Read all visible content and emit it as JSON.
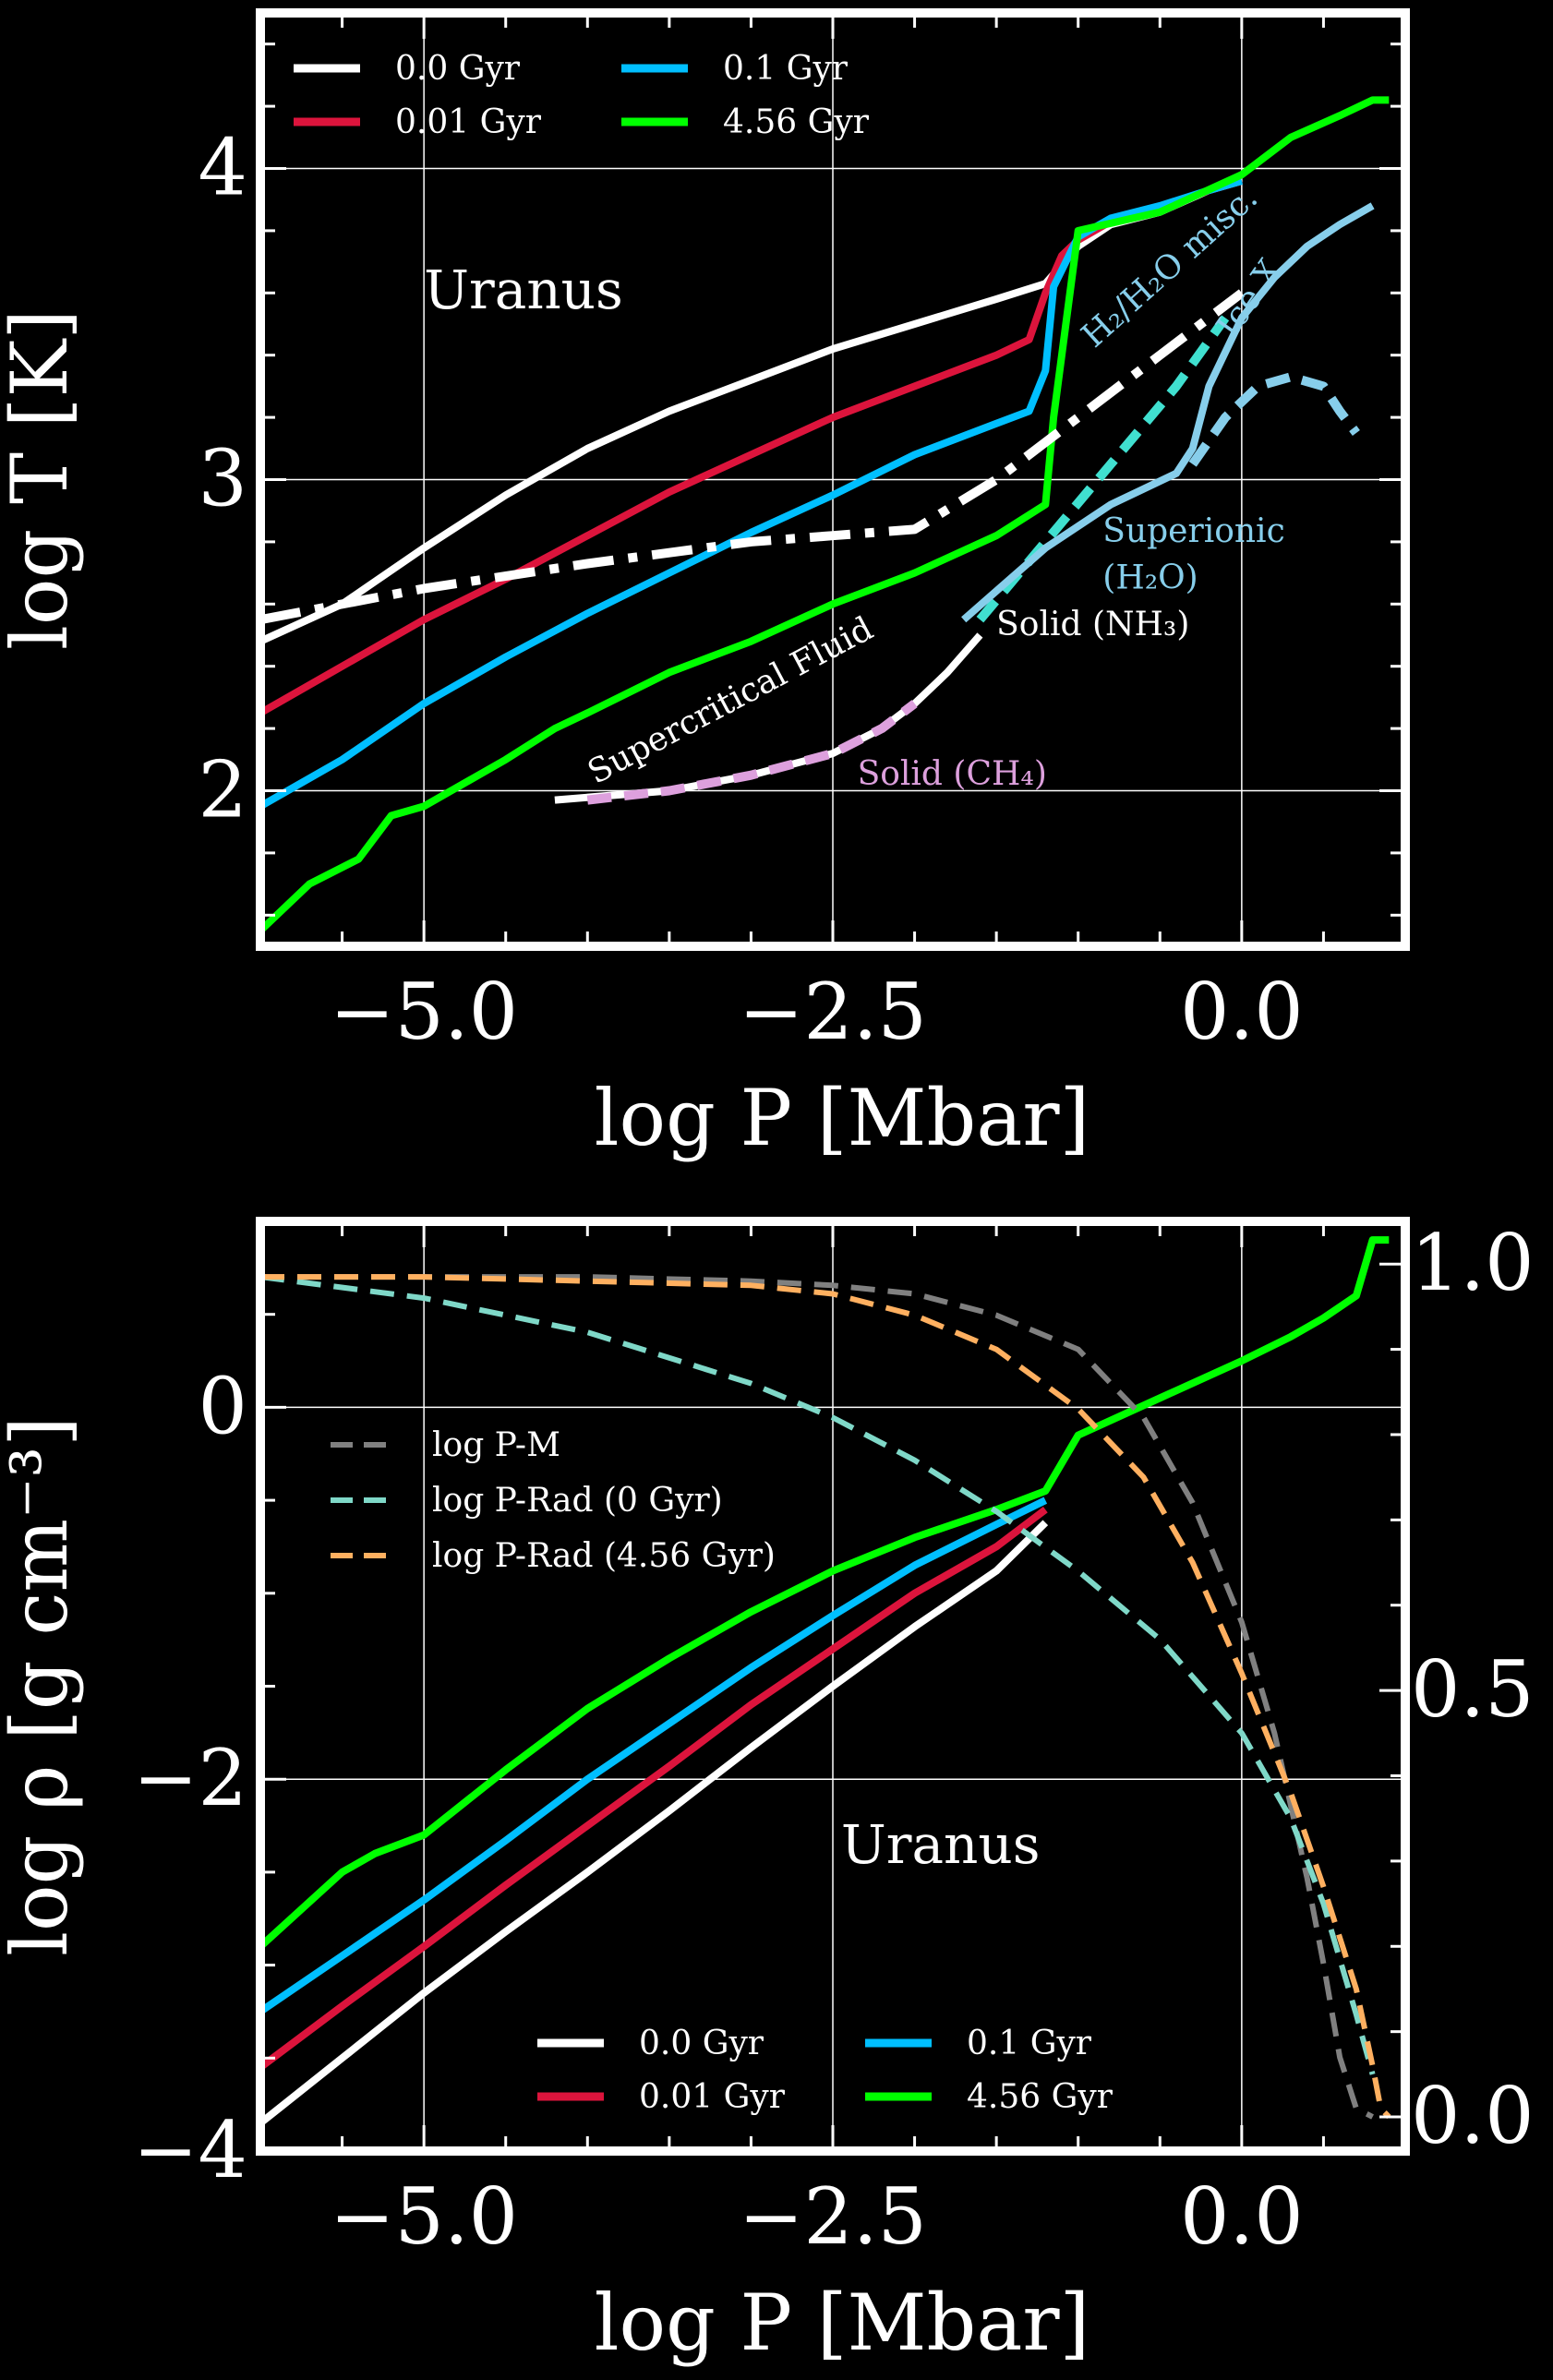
{
  "figure": {
    "background": "#000000",
    "axis_color": "#ffffff",
    "grid": true
  },
  "chart_data": [
    {
      "type": "line",
      "panel": "top",
      "xlabel": "log P [Mbar]",
      "ylabel": "log T [K]",
      "xlim": [
        -6.0,
        1.0
      ],
      "ylim": [
        1.5,
        4.5
      ],
      "xticks": [
        -5.0,
        -2.5,
        0.0
      ],
      "xtick_labels": [
        "−5.0",
        "−2.5",
        "0.0"
      ],
      "yticks": [
        2,
        3,
        4
      ],
      "ytick_labels": [
        "2",
        "3",
        "4"
      ],
      "annotations": [
        {
          "text": "Uranus",
          "x": -5.0,
          "y": 3.55,
          "color": "#ffffff"
        },
        {
          "text": "H₂/H₂O misc.",
          "x": -0.9,
          "y": 3.42,
          "color": "#87ceeb",
          "rotate": -42
        },
        {
          "text": "Ice X",
          "x": -0.05,
          "y": 3.45,
          "color": "#87ceeb",
          "rotate": -55
        },
        {
          "text": "Superionic",
          "x": -0.85,
          "y": 2.8,
          "color": "#87ceeb"
        },
        {
          "text": "(H₂O)",
          "x": -0.85,
          "y": 2.65,
          "color": "#87ceeb"
        },
        {
          "text": "Solid (NH₃)",
          "x": -1.5,
          "y": 2.5,
          "color": "#ffffff"
        },
        {
          "text": "Supercritical Fluid",
          "x": -3.95,
          "y": 2.02,
          "color": "#ffffff",
          "rotate": -28
        },
        {
          "text": "Solid (CH₄)",
          "x": -2.35,
          "y": 2.02,
          "color": "#dda0dd"
        }
      ],
      "legend": {
        "placement": "top-left",
        "entries": [
          "0.0 Gyr",
          "0.01 Gyr",
          "0.1 Gyr",
          "4.56 Gyr"
        ],
        "colors": [
          "#ffffff",
          "#dc143c",
          "#00bfff",
          "#00ff00"
        ]
      },
      "series": [
        {
          "name": "0.0 Gyr",
          "color": "#ffffff",
          "x": [
            -6.0,
            -5.5,
            -5.0,
            -4.5,
            -4.0,
            -3.5,
            -3.0,
            -2.5,
            -2.0,
            -1.5,
            -1.2,
            -1.05,
            -1.0,
            -0.8,
            -0.5,
            -0.2,
            0.0
          ],
          "y": [
            2.48,
            2.6,
            2.78,
            2.95,
            3.1,
            3.22,
            3.32,
            3.42,
            3.5,
            3.58,
            3.63,
            3.72,
            3.75,
            3.82,
            3.86,
            3.93,
            3.96
          ]
        },
        {
          "name": "0.01 Gyr",
          "color": "#dc143c",
          "x": [
            -6.0,
            -5.5,
            -5.0,
            -4.5,
            -4.0,
            -3.5,
            -3.0,
            -2.5,
            -2.0,
            -1.5,
            -1.3,
            -1.2,
            -1.1,
            -1.0,
            -0.8,
            -0.5,
            -0.2,
            0.0
          ],
          "y": [
            2.25,
            2.4,
            2.55,
            2.68,
            2.82,
            2.96,
            3.08,
            3.2,
            3.3,
            3.4,
            3.45,
            3.6,
            3.72,
            3.77,
            3.83,
            3.87,
            3.93,
            3.96
          ]
        },
        {
          "name": "0.1 Gyr",
          "color": "#00bfff",
          "x": [
            -6.0,
            -5.5,
            -5.0,
            -4.5,
            -4.0,
            -3.5,
            -3.0,
            -2.5,
            -2.0,
            -1.5,
            -1.3,
            -1.2,
            -1.15,
            -1.0,
            -0.8,
            -0.5,
            -0.2,
            0.0
          ],
          "y": [
            1.95,
            2.1,
            2.28,
            2.43,
            2.57,
            2.7,
            2.83,
            2.95,
            3.08,
            3.18,
            3.22,
            3.35,
            3.62,
            3.78,
            3.84,
            3.88,
            3.93,
            3.96
          ]
        },
        {
          "name": "4.56 Gyr",
          "color": "#00ff00",
          "x": [
            -6.0,
            -5.7,
            -5.4,
            -5.2,
            -5.0,
            -4.5,
            -4.2,
            -4.0,
            -3.5,
            -3.0,
            -2.5,
            -2.0,
            -1.5,
            -1.2,
            -1.15,
            -1.0,
            -0.5,
            0.0,
            0.3,
            0.6,
            0.8,
            0.9
          ],
          "y": [
            1.55,
            1.7,
            1.78,
            1.92,
            1.95,
            2.1,
            2.2,
            2.25,
            2.38,
            2.48,
            2.6,
            2.7,
            2.82,
            2.92,
            3.2,
            3.8,
            3.86,
            3.98,
            4.1,
            4.17,
            4.22,
            4.22
          ]
        },
        {
          "color": "#ffffff",
          "dash": "dashdot",
          "x": [
            -6.0,
            -5.0,
            -4.0,
            -3.0,
            -2.5,
            -2.0,
            -1.5,
            -1.0,
            -0.5,
            -0.2,
            0.0
          ],
          "y": [
            2.55,
            2.65,
            2.73,
            2.8,
            2.82,
            2.84,
            3.0,
            3.2,
            3.4,
            3.52,
            3.6
          ]
        },
        {
          "color": "#ffffff",
          "dash": "solid",
          "x": [
            -4.2,
            -3.5,
            -3.0,
            -2.5,
            -2.2,
            -2.0,
            -1.8,
            -1.6
          ],
          "y": [
            1.97,
            2.0,
            2.05,
            2.12,
            2.2,
            2.28,
            2.38,
            2.5
          ]
        },
        {
          "color": "#dda0dd",
          "dash": "dashed",
          "x": [
            -4.0,
            -3.5,
            -3.0,
            -2.5,
            -2.2,
            -2.0
          ],
          "y": [
            1.97,
            2.0,
            2.05,
            2.12,
            2.2,
            2.28
          ]
        },
        {
          "color": "#40e0d0",
          "dash": "dashed",
          "x": [
            -1.6,
            -1.2,
            -0.8,
            -0.4,
            -0.1
          ],
          "y": [
            2.55,
            2.8,
            3.05,
            3.3,
            3.52
          ]
        },
        {
          "color": "#87ceeb",
          "dash": "solid",
          "x": [
            -1.7,
            -1.2,
            -0.8,
            -0.6,
            -0.4,
            -0.3,
            -0.2,
            0.0,
            0.2,
            0.4,
            0.6,
            0.8
          ],
          "y": [
            2.55,
            2.78,
            2.92,
            2.97,
            3.02,
            3.1,
            3.3,
            3.52,
            3.65,
            3.75,
            3.82,
            3.88
          ]
        },
        {
          "color": "#87ceeb",
          "dash": "dashed",
          "x": [
            -0.3,
            -0.1,
            0.1,
            0.3,
            0.5,
            0.6,
            0.7
          ],
          "y": [
            3.05,
            3.2,
            3.3,
            3.33,
            3.3,
            3.22,
            3.15
          ]
        }
      ]
    },
    {
      "type": "line",
      "panel": "bottom",
      "xlabel": "log P [Mbar]",
      "ylabel": "log ρ [g cm⁻³]",
      "xlim": [
        -6.0,
        1.0
      ],
      "ylim": [
        -4.0,
        1.0
      ],
      "xticks": [
        -5.0,
        -2.5,
        0.0
      ],
      "xtick_labels": [
        "−5.0",
        "−2.5",
        "0.0"
      ],
      "yticks": [
        -4,
        -2,
        0
      ],
      "ytick_labels": [
        "−4",
        "−2",
        "0"
      ],
      "y2lim": [
        -0.04,
        1.05
      ],
      "y2ticks": [
        0.0,
        0.5,
        1.0
      ],
      "y2tick_labels": [
        "0.0",
        "0.5",
        "1.0"
      ],
      "annotations": [
        {
          "text": "Uranus",
          "x": -2.45,
          "y": -2.45,
          "color": "#ffffff"
        }
      ],
      "legend_upper": {
        "placement": "center-left",
        "entries": [
          "log P-M",
          "log P-Rad (0 Gyr)",
          "log P-Rad (4.56 Gyr)"
        ],
        "colors": [
          "#808080",
          "#7fd8c8",
          "#ffb060"
        ]
      },
      "legend": {
        "placement": "lower-center",
        "entries": [
          "0.0 Gyr",
          "0.01 Gyr",
          "0.1 Gyr",
          "4.56 Gyr"
        ],
        "colors": [
          "#ffffff",
          "#dc143c",
          "#00bfff",
          "#00ff00"
        ]
      },
      "series": [
        {
          "name": "0.0 Gyr",
          "color": "#ffffff",
          "x": [
            -6.0,
            -5.5,
            -5.0,
            -4.5,
            -4.0,
            -3.5,
            -3.0,
            -2.5,
            -2.0,
            -1.5,
            -1.2
          ],
          "y": [
            -3.85,
            -3.5,
            -3.15,
            -2.82,
            -2.5,
            -2.17,
            -1.83,
            -1.5,
            -1.18,
            -0.88,
            -0.62
          ]
        },
        {
          "name": "0.01 Gyr",
          "color": "#dc143c",
          "x": [
            -6.0,
            -5.5,
            -5.0,
            -4.5,
            -4.0,
            -3.5,
            -3.0,
            -2.5,
            -2.0,
            -1.5,
            -1.2
          ],
          "y": [
            -3.55,
            -3.22,
            -2.9,
            -2.57,
            -2.25,
            -1.93,
            -1.6,
            -1.3,
            -1.0,
            -0.75,
            -0.55
          ]
        },
        {
          "name": "0.1 Gyr",
          "color": "#00bfff",
          "x": [
            -6.0,
            -5.5,
            -5.0,
            -4.5,
            -4.0,
            -3.5,
            -3.0,
            -2.5,
            -2.0,
            -1.5,
            -1.2
          ],
          "y": [
            -3.25,
            -2.95,
            -2.65,
            -2.33,
            -2.0,
            -1.7,
            -1.4,
            -1.12,
            -0.85,
            -0.63,
            -0.5
          ]
        },
        {
          "name": "4.56 Gyr",
          "color": "#00ff00",
          "x": [
            -6.0,
            -5.5,
            -5.3,
            -5.0,
            -4.5,
            -4.0,
            -3.5,
            -3.0,
            -2.5,
            -2.0,
            -1.5,
            -1.2,
            -1.1,
            -1.0,
            -0.5,
            0.0,
            0.3,
            0.5,
            0.7,
            0.8,
            0.9
          ],
          "y": [
            -2.9,
            -2.5,
            -2.4,
            -2.3,
            -1.95,
            -1.62,
            -1.35,
            -1.1,
            -0.88,
            -0.7,
            -0.55,
            -0.45,
            -0.3,
            -0.15,
            0.05,
            0.25,
            0.38,
            0.48,
            0.6,
            0.9,
            0.9
          ]
        },
        {
          "name": "log P-M",
          "color": "#808080",
          "dash": "dashed",
          "axis": "right",
          "x": [
            -6.0,
            -5.0,
            -4.0,
            -3.0,
            -2.5,
            -2.0,
            -1.5,
            -1.0,
            -0.6,
            -0.3,
            0.0,
            0.2,
            0.4,
            0.5,
            0.6,
            0.7,
            0.8
          ],
          "y": [
            0.985,
            0.985,
            0.985,
            0.98,
            0.975,
            0.965,
            0.94,
            0.9,
            0.82,
            0.72,
            0.58,
            0.45,
            0.28,
            0.18,
            0.07,
            0.01,
            0.0
          ]
        },
        {
          "name": "log P-Rad (0 Gyr)",
          "color": "#7fd8c8",
          "dash": "dashed",
          "axis": "right",
          "x": [
            -6.0,
            -5.0,
            -4.0,
            -3.0,
            -2.5,
            -2.0,
            -1.5,
            -1.0,
            -0.5,
            0.0,
            0.3,
            0.5,
            0.7,
            0.8
          ],
          "y": [
            0.985,
            0.96,
            0.92,
            0.86,
            0.82,
            0.77,
            0.71,
            0.64,
            0.56,
            0.45,
            0.35,
            0.25,
            0.12,
            0.05
          ]
        },
        {
          "name": "log P-Rad (4.56 Gyr)",
          "color": "#ffb060",
          "dash": "dashed",
          "axis": "right",
          "x": [
            -6.0,
            -5.0,
            -4.0,
            -3.0,
            -2.5,
            -2.0,
            -1.5,
            -1.0,
            -0.6,
            -0.3,
            0.0,
            0.3,
            0.5,
            0.7,
            0.8,
            0.85,
            0.9
          ],
          "y": [
            0.985,
            0.985,
            0.98,
            0.975,
            0.965,
            0.94,
            0.9,
            0.83,
            0.75,
            0.65,
            0.52,
            0.38,
            0.27,
            0.15,
            0.06,
            0.01,
            0.0
          ]
        }
      ]
    }
  ]
}
